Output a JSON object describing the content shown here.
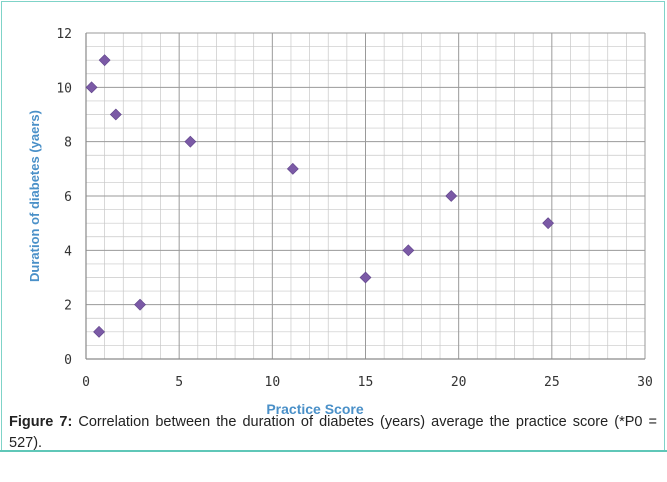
{
  "chart_data": {
    "type": "scatter",
    "title": "",
    "xlabel": "Practice Score",
    "ylabel": "Duration of diabetes (yaers)",
    "xlim": [
      0,
      30
    ],
    "ylim": [
      0,
      12
    ],
    "xticks": [
      "0",
      "5",
      "10",
      "15",
      "20",
      "25",
      "30"
    ],
    "yticks": [
      "0",
      "2",
      "4",
      "6",
      "8",
      "10",
      "12"
    ],
    "grid": true,
    "marker": "diamond",
    "colors": {
      "marker": "#7b5aa6",
      "axis_label": "#4a90c8",
      "grid": "#c8c8c8",
      "tick_label": "#333333"
    },
    "points": [
      {
        "x": 0.3,
        "y": 10
      },
      {
        "x": 1.0,
        "y": 11
      },
      {
        "x": 1.6,
        "y": 9
      },
      {
        "x": 0.7,
        "y": 1
      },
      {
        "x": 2.9,
        "y": 2
      },
      {
        "x": 5.6,
        "y": 8
      },
      {
        "x": 11.1,
        "y": 7
      },
      {
        "x": 15.0,
        "y": 3
      },
      {
        "x": 17.3,
        "y": 4
      },
      {
        "x": 19.6,
        "y": 6
      },
      {
        "x": 24.8,
        "y": 5
      }
    ]
  },
  "caption": {
    "label": "Figure 7:",
    "text": " Correlation between the duration of diabetes (years) average the practice score (*P0 = 527)."
  }
}
